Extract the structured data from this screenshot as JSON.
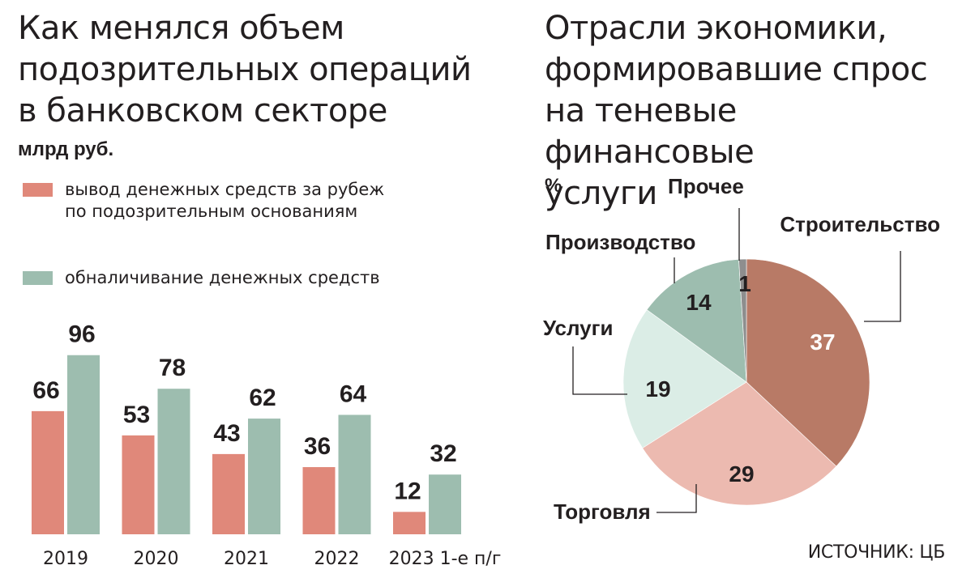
{
  "left_chart": {
    "title_lines": [
      "Как менялся объем",
      "подозрительных операций",
      "в банковском секторе"
    ],
    "unit": "млрд руб."
  },
  "right_chart": {
    "title_lines": [
      "Отрасли экономики,",
      "формировавшие спрос",
      "на теневые финансовые",
      "услуги"
    ],
    "unit": "%"
  },
  "source": "ИСТОЧНИК: ЦБ",
  "chart_data": [
    {
      "type": "bar",
      "title": "Как менялся объем подозрительных операций в банковском секторе",
      "ylabel": "млрд руб.",
      "categories": [
        "2019",
        "2020",
        "2021",
        "2022",
        "2023 1-е п/г"
      ],
      "series": [
        {
          "name": "вывод денежных средств за рубеж по подозрительным основаниям",
          "values": [
            66,
            53,
            43,
            36,
            12
          ],
          "color": "#e0887a"
        },
        {
          "name": "обналичивание денежных средств",
          "values": [
            96,
            78,
            62,
            64,
            32
          ],
          "color": "#9dbdaf"
        }
      ],
      "ylim": [
        0,
        100
      ],
      "grid": false,
      "legend": "top-left"
    },
    {
      "type": "pie",
      "title": "Отрасли экономики, формировавшие спрос на теневые финансовые услуги",
      "unit": "%",
      "slices": [
        {
          "label": "Строительство",
          "value": 37,
          "color": "#b87a66",
          "value_color": "#ffffff"
        },
        {
          "label": "Торговля",
          "value": 29,
          "color": "#ecbab0",
          "value_color": "#231f20"
        },
        {
          "label": "Услуги",
          "value": 19,
          "color": "#dbede6",
          "value_color": "#231f20"
        },
        {
          "label": "Производство",
          "value": 14,
          "color": "#9dbdaf",
          "value_color": "#231f20"
        },
        {
          "label": "Прочее",
          "value": 1,
          "color": "#8e8e8e",
          "value_color": "#231f20"
        }
      ]
    }
  ]
}
